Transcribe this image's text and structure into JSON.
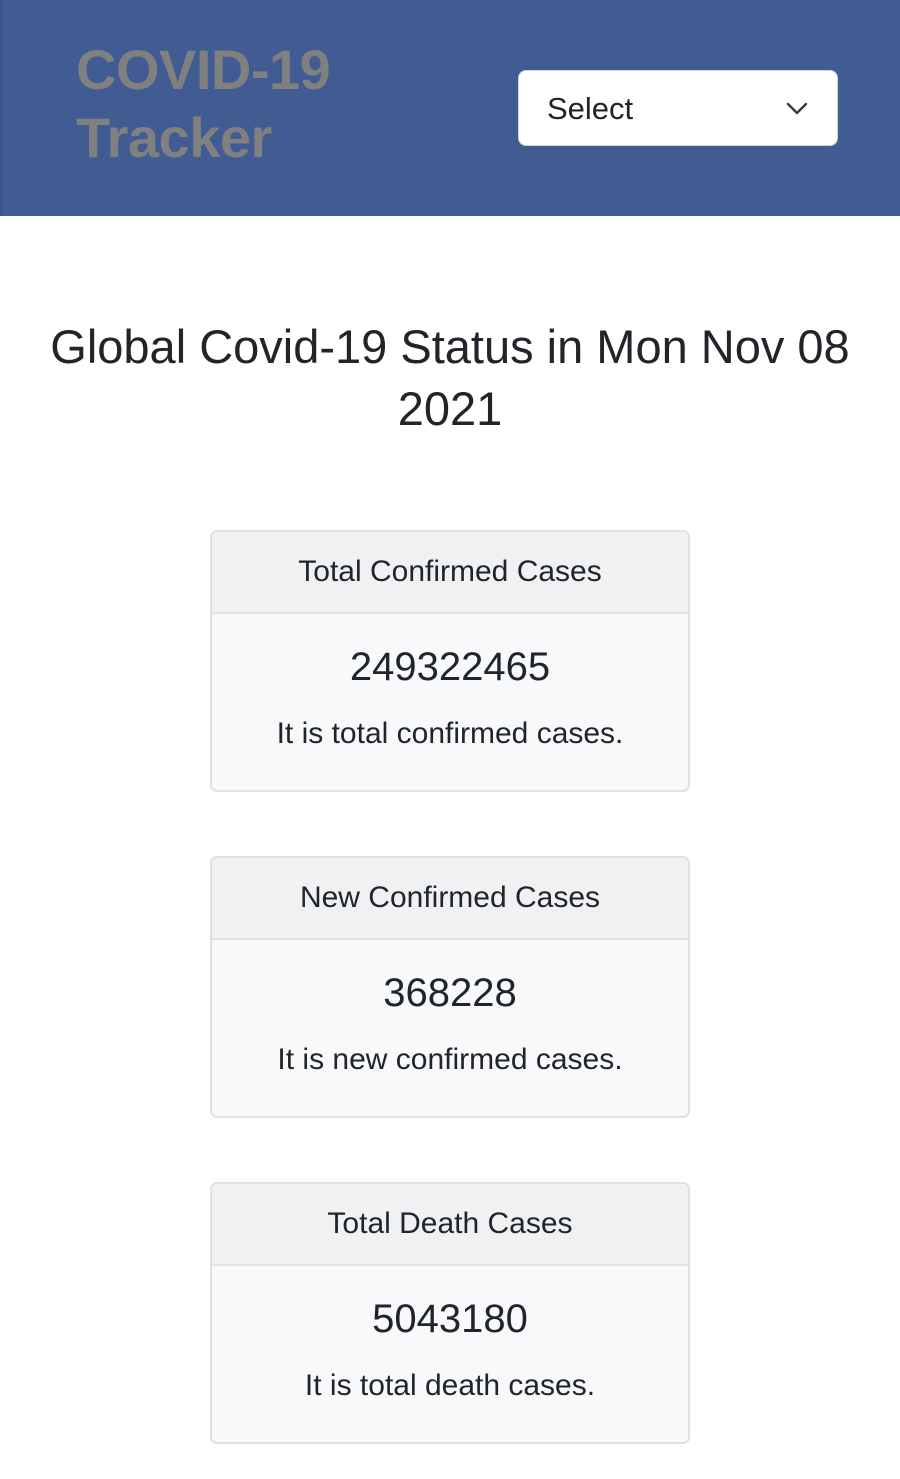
{
  "navbar": {
    "brand": "COVID-19 Tracker",
    "country_select": {
      "selected": "Select"
    },
    "colors": {
      "background": "#415b93",
      "brand_text": "#808080"
    }
  },
  "main": {
    "title": "Global Covid-19 Status in Mon Nov 08 2021",
    "cards": [
      {
        "header": "Total Confirmed Cases",
        "value": "249322465",
        "description": "It is total confirmed cases."
      },
      {
        "header": "New Confirmed Cases",
        "value": "368228",
        "description": "It is new confirmed cases."
      },
      {
        "header": "Total Death Cases",
        "value": "5043180",
        "description": "It is total death cases."
      }
    ]
  }
}
